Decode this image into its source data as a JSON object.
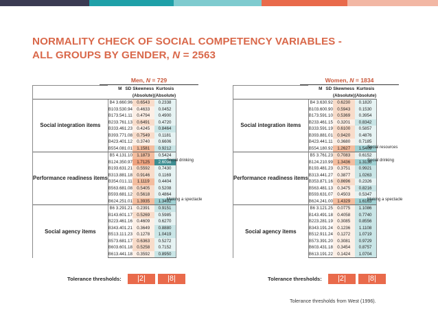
{
  "colors": {
    "bar": [
      "#3a3a52",
      "#1fa0a8",
      "#7fcbcf",
      "#e96a4b",
      "#f2b7a4"
    ],
    "title": "#d9684a",
    "accent": "#e96a4b"
  },
  "title_line1": "NORMALITY CHECK OF SOCIAL COMPETENCY VARIABLES -",
  "title_line2": "ALL GROUPS BY GENDER, N = 2563",
  "headers": {
    "m": "M",
    "sd": "SD",
    "skew": "Skewness",
    "kurt": "Kurtosis",
    "abs": "(Absolute)"
  },
  "tolerance": {
    "label": "Tolerance thresholds:",
    "skew": "|2|",
    "kurt": "|8|"
  },
  "source": "Tolerance thresholds from West (1996).",
  "groups": [
    {
      "label": "Social integration items",
      "start": 0,
      "len": 8
    },
    {
      "label": "Performance readiness items",
      "start": 8,
      "len": 8
    },
    {
      "label": "Social agency items",
      "start": 16,
      "len": 8
    }
  ],
  "panels": [
    {
      "title": "Men, N = 729",
      "rows": [
        [
          "B4",
          "3.66",
          "0.96",
          "0.6543",
          "0.2338"
        ],
        [
          "B10",
          "3.53",
          "0.94",
          "0.4633",
          "0.0452"
        ],
        [
          "B17",
          "3.54",
          "1.11",
          "0.4794",
          "0.4900"
        ],
        [
          "B23",
          "3.76",
          "1.13",
          "0.6491",
          "0.4720"
        ],
        [
          "B33",
          "3.46",
          "1.23",
          "0.4245",
          "0.8464"
        ],
        [
          "B39",
          "3.77",
          "1.08",
          "0.7549",
          "0.1181"
        ],
        [
          "B42",
          "3.40",
          "1.12",
          "0.3740",
          "0.6606"
        ],
        [
          "B55",
          "4.08",
          "1.01",
          "1.1581",
          "0.9212"
        ],
        [
          "B5",
          "4.13",
          "1.10",
          "1.1873",
          "0.5424"
        ],
        [
          "B12",
          "4.35",
          "0.97",
          "1.7125",
          "2.6098"
        ],
        [
          "B19",
          "3.63",
          "1.21",
          "0.5592",
          "0.7430"
        ],
        [
          "B31",
          "3.88",
          "1.18",
          "0.9146",
          "0.1169"
        ],
        [
          "B35",
          "4.01",
          "1.11",
          "1.1119",
          "0.4404"
        ],
        [
          "B56",
          "3.68",
          "1.08",
          "0.5405",
          "0.5208"
        ],
        [
          "B59",
          "3.68",
          "1.12",
          "0.5618",
          "0.4864"
        ],
        [
          "B62",
          "4.25",
          "1.01",
          "1.3935",
          "1.3492"
        ],
        [
          "B6",
          "3.29",
          "1.21",
          "0.2391",
          "0.9151"
        ],
        [
          "B14",
          "3.60",
          "1.17",
          "0.5269",
          "0.5985"
        ],
        [
          "B22",
          "3.46",
          "1.16",
          "0.4609",
          "0.6270"
        ],
        [
          "B34",
          "3.40",
          "1.21",
          "0.3649",
          "0.8880"
        ],
        [
          "B51",
          "3.11",
          "1.23",
          "0.1278",
          "1.0419"
        ],
        [
          "B57",
          "3.68",
          "1.17",
          "0.6363",
          "0.5272"
        ],
        [
          "B60",
          "3.60",
          "1.18",
          "0.5258",
          "0.7152"
        ],
        [
          "B61",
          "3.44",
          "1.18",
          "0.3592",
          "0.8950"
        ]
      ],
      "notes": [
        {
          "row": 9,
          "text": "Social drinking"
        },
        {
          "row": 15,
          "text": "Making a spectacle"
        }
      ]
    },
    {
      "title": "Women, N = 1834",
      "rows": [
        [
          "B4",
          "3.63",
          "0.92",
          "0.6230",
          "0.1820"
        ],
        [
          "B10",
          "3.60",
          "0.90",
          "0.5943",
          "0.1530"
        ],
        [
          "B17",
          "3.59",
          "1.10",
          "0.5369",
          "0.3954"
        ],
        [
          "B23",
          "3.46",
          "1.15",
          "0.3201",
          "0.8342"
        ],
        [
          "B33",
          "3.59",
          "1.19",
          "0.6100",
          "0.5857"
        ],
        [
          "B39",
          "3.88",
          "1.01",
          "0.9420",
          "0.4876"
        ],
        [
          "B42",
          "3.44",
          "1.11",
          "0.3680",
          "0.7185"
        ],
        [
          "B55",
          "4.18",
          "0.92",
          "1.2627",
          "1.5409"
        ],
        [
          "B5",
          "3.76",
          "1.23",
          "0.7083",
          "0.6152"
        ],
        [
          "B12",
          "4.21",
          "0.99",
          "1.3436",
          "1.3136"
        ],
        [
          "B19",
          "3.48",
          "1.23",
          "0.3751",
          "0.9921"
        ],
        [
          "B31",
          "3.44",
          "1.27",
          "0.3877",
          "1.0263"
        ],
        [
          "B35",
          "3.87",
          "1.16",
          "0.8696",
          "0.2326"
        ],
        [
          "B56",
          "3.48",
          "1.13",
          "0.3475",
          "0.8216"
        ],
        [
          "B59",
          "3.63",
          "1.07",
          "0.4503",
          "0.5347"
        ],
        [
          "B62",
          "4.24",
          "1.00",
          "1.4329",
          "1.6163"
        ],
        [
          "B6",
          "3.12",
          "1.25",
          "0.0775",
          "1.1086"
        ],
        [
          "B14",
          "3.49",
          "1.18",
          "0.4058",
          "0.7740"
        ],
        [
          "B22",
          "3.28",
          "1.19",
          "0.3085",
          "0.8556"
        ],
        [
          "B34",
          "3.19",
          "1.24",
          "0.1236",
          "1.1108"
        ],
        [
          "B51",
          "2.91",
          "1.24",
          "0.1272",
          "1.0719"
        ],
        [
          "B57",
          "3.39",
          "1.20",
          "0.3081",
          "0.9729"
        ],
        [
          "B60",
          "3.43",
          "1.18",
          "0.3454",
          "0.8757"
        ],
        [
          "B61",
          "3.19",
          "1.22",
          "0.1424",
          "1.0704"
        ]
      ],
      "notes": [
        {
          "row": 7,
          "text": "Social resources"
        },
        {
          "row": 9,
          "text": "Social drinking"
        },
        {
          "row": 15,
          "text": "Making a spectacle"
        }
      ]
    }
  ]
}
